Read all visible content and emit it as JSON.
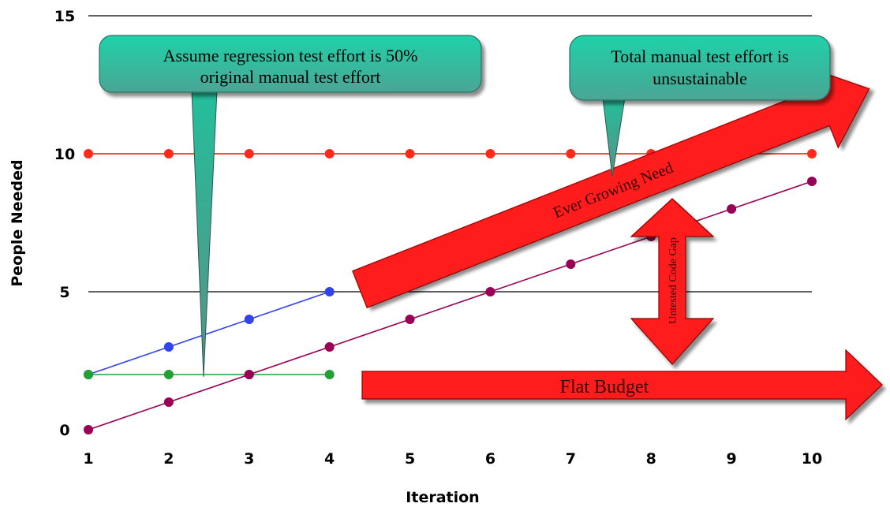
{
  "chart_data": {
    "type": "line",
    "xlabel": "Iteration",
    "ylabel": "People Needed",
    "x": [
      1,
      2,
      3,
      4,
      5,
      6,
      7,
      8,
      9,
      10
    ],
    "xlim": [
      1,
      10
    ],
    "ylim": [
      0,
      15
    ],
    "yticks": [
      0,
      5,
      10,
      15
    ],
    "grid": "horizontal",
    "series": [
      {
        "key": "total",
        "color": "#ff2a1a",
        "x": [
          1,
          2,
          3,
          4,
          5,
          6,
          7,
          8,
          9,
          10
        ],
        "values": [
          10,
          10,
          10,
          10,
          10,
          10,
          10,
          10,
          10,
          10
        ]
      },
      {
        "key": "regression",
        "color": "#3344ee",
        "x": [
          1,
          2,
          3,
          4
        ],
        "values": [
          2,
          3,
          4,
          5
        ]
      },
      {
        "key": "budget",
        "color": "#22a032",
        "x": [
          1,
          2,
          3,
          4
        ],
        "values": [
          2,
          2,
          2,
          2
        ]
      },
      {
        "key": "gap",
        "color": "#990055",
        "x": [
          1,
          2,
          3,
          4,
          5,
          6,
          7,
          8,
          9,
          10
        ],
        "values": [
          0,
          1,
          2,
          3,
          4,
          5,
          6,
          7,
          8,
          9
        ]
      }
    ],
    "annotations": {
      "callout_left": [
        "Assume regression test effort is 50%",
        "original manual test effort"
      ],
      "callout_right": [
        "Total manual test effort is",
        "unsustainable"
      ],
      "arrow_growing": "Ever Growing Need",
      "arrow_flat": "Flat Budget",
      "arrow_gap": "Untested Code Gap"
    },
    "colors": {
      "callout_fill": "#19c6a0",
      "arrow_fill": "#ff1a1a",
      "grid": "#000000"
    }
  }
}
